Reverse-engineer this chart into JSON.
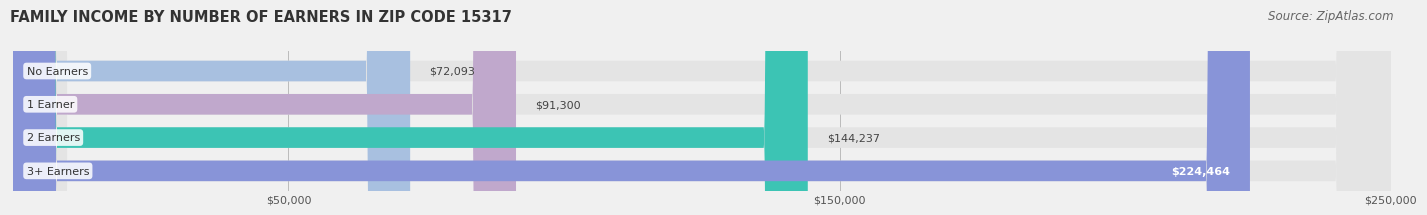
{
  "title": "FAMILY INCOME BY NUMBER OF EARNERS IN ZIP CODE 15317",
  "source": "Source: ZipAtlas.com",
  "categories": [
    "No Earners",
    "1 Earner",
    "2 Earners",
    "3+ Earners"
  ],
  "values": [
    72093,
    91300,
    144237,
    224464
  ],
  "bar_colors": [
    "#a8c0e0",
    "#c0a8cc",
    "#3cc4b4",
    "#8894d8"
  ],
  "bar_label_colors": [
    "#444444",
    "#444444",
    "#444444",
    "#ffffff"
  ],
  "value_labels": [
    "$72,093",
    "$91,300",
    "$144,237",
    "$224,464"
  ],
  "xlim": [
    0,
    250000
  ],
  "xticks": [
    50000,
    150000,
    250000
  ],
  "xtick_labels": [
    "$50,000",
    "$150,000",
    "$250,000"
  ],
  "background_color": "#f0f0f0",
  "bar_bg_color": "#e4e4e4",
  "title_fontsize": 10.5,
  "source_fontsize": 8.5,
  "label_fontsize": 8,
  "value_fontsize": 8
}
